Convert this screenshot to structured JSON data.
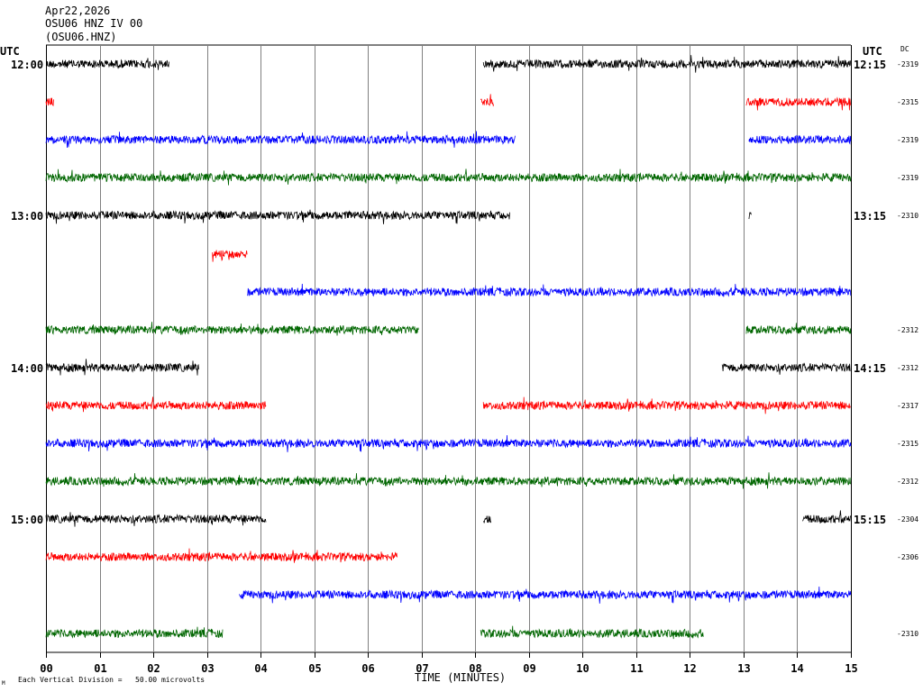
{
  "header": {
    "date": "Apr22,2026",
    "station": "OSU06 HNZ IV 00",
    "channel": "(OSU06.HNZ)",
    "utc_left": "UTC",
    "utc_right": "UTC",
    "dc_label": "DC"
  },
  "footer": {
    "xlabel": "TIME (MINUTES)",
    "scale_note": "Each Vertical Division =   50.00 microvolts",
    "corner_mark": "M"
  },
  "colors": {
    "black": "#000000",
    "red": "#ff0000",
    "blue": "#0000ff",
    "green": "#006600",
    "grid": "#808080"
  },
  "chart_data": {
    "type": "line",
    "title": "OSU06 HNZ IV 00",
    "xlabel": "TIME (MINUTES)",
    "ylabel": "",
    "xlim": [
      0,
      15
    ],
    "x_ticks": [
      "00",
      "01",
      "02",
      "03",
      "04",
      "05",
      "06",
      "07",
      "08",
      "09",
      "10",
      "11",
      "12",
      "13",
      "14",
      "15"
    ],
    "grid": "vertical",
    "rows": [
      {
        "left_time": "12:00",
        "right_time": "12:15",
        "dc": "-2319",
        "color": "black",
        "segments": [
          [
            0,
            2.3
          ],
          [
            8.15,
            15
          ]
        ]
      },
      {
        "left_time": "",
        "right_time": "",
        "dc": "-2315",
        "color": "red",
        "segments": [
          [
            0,
            0.15
          ],
          [
            8.1,
            8.35
          ],
          [
            13.05,
            15
          ]
        ]
      },
      {
        "left_time": "",
        "right_time": "",
        "dc": "-2319",
        "color": "blue",
        "segments": [
          [
            0,
            8.75
          ],
          [
            13.1,
            15
          ]
        ]
      },
      {
        "left_time": "",
        "right_time": "",
        "dc": "-2319",
        "color": "green",
        "segments": [
          [
            0,
            15
          ]
        ]
      },
      {
        "left_time": "13:00",
        "right_time": "13:15",
        "dc": "-2310",
        "color": "black",
        "segments": [
          [
            0,
            8.65
          ],
          [
            13.1,
            13.15
          ]
        ]
      },
      {
        "left_time": "",
        "right_time": "",
        "dc": "",
        "color": "red",
        "segments": [
          [
            3.1,
            3.75
          ]
        ]
      },
      {
        "left_time": "",
        "right_time": "",
        "dc": "",
        "color": "blue",
        "segments": [
          [
            3.75,
            15
          ]
        ]
      },
      {
        "left_time": "",
        "right_time": "",
        "dc": "-2312",
        "color": "green",
        "segments": [
          [
            0,
            6.95
          ],
          [
            13.05,
            15
          ]
        ]
      },
      {
        "left_time": "14:00",
        "right_time": "14:15",
        "dc": "-2312",
        "color": "black",
        "segments": [
          [
            0,
            2.85
          ],
          [
            12.6,
            15
          ]
        ]
      },
      {
        "left_time": "",
        "right_time": "",
        "dc": "-2317",
        "color": "red",
        "segments": [
          [
            0,
            4.1
          ],
          [
            8.15,
            15
          ]
        ]
      },
      {
        "left_time": "",
        "right_time": "",
        "dc": "-2315",
        "color": "blue",
        "segments": [
          [
            0,
            15
          ]
        ]
      },
      {
        "left_time": "",
        "right_time": "",
        "dc": "-2312",
        "color": "green",
        "segments": [
          [
            0,
            15
          ]
        ]
      },
      {
        "left_time": "15:00",
        "right_time": "15:15",
        "dc": "-2304",
        "color": "black",
        "segments": [
          [
            0,
            4.1
          ],
          [
            8.15,
            8.3
          ],
          [
            14.1,
            15
          ]
        ]
      },
      {
        "left_time": "",
        "right_time": "",
        "dc": "-2306",
        "color": "red",
        "segments": [
          [
            0,
            6.55
          ]
        ]
      },
      {
        "left_time": "",
        "right_time": "",
        "dc": "",
        "color": "blue",
        "segments": [
          [
            3.6,
            15
          ]
        ]
      },
      {
        "left_time": "",
        "right_time": "",
        "dc": "-2310",
        "color": "green",
        "segments": [
          [
            0,
            3.3
          ],
          [
            8.1,
            12.25
          ]
        ]
      }
    ]
  }
}
